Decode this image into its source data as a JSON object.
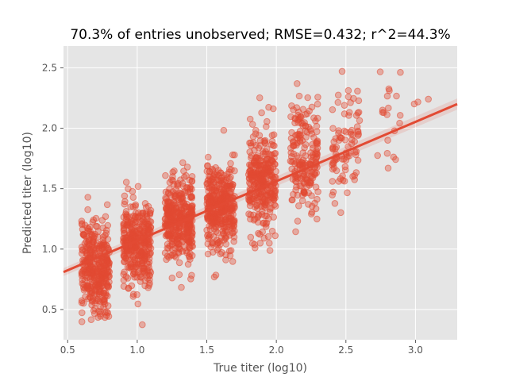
{
  "chart_data": {
    "type": "scatter",
    "title": "70.3% of entries unobserved; RMSE=0.432; r^2=44.3%",
    "xlabel": "True titer (log10)",
    "ylabel": "Predicted titer (log10)",
    "xlim": [
      0.47,
      3.3
    ],
    "ylim": [
      0.25,
      2.68
    ],
    "xticks": [
      0.5,
      1.0,
      1.5,
      2.0,
      2.5,
      3.0
    ],
    "xtick_labels": [
      "0.5",
      "1.0",
      "1.5",
      "2.0",
      "2.5",
      "3.0"
    ],
    "yticks": [
      0.5,
      1.0,
      1.5,
      2.0,
      2.5
    ],
    "ytick_labels": [
      "0.5",
      "1.0",
      "1.5",
      "2.0",
      "2.5"
    ],
    "grid": true,
    "background": "#e5e5e5",
    "point_color": "#e24a33",
    "regression_color": "#e24a33",
    "regression": {
      "x": [
        0.47,
        3.3
      ],
      "y": [
        0.81,
        2.2
      ]
    },
    "clusters": [
      {
        "x_center": 0.7,
        "y_center": 0.85,
        "y_spread": 0.3,
        "count": 360
      },
      {
        "x_center": 1.0,
        "y_center": 1.05,
        "y_spread": 0.28,
        "count": 340
      },
      {
        "x_center": 1.3,
        "y_center": 1.25,
        "y_spread": 0.28,
        "count": 380
      },
      {
        "x_center": 1.6,
        "y_center": 1.35,
        "y_spread": 0.3,
        "count": 380
      },
      {
        "x_center": 1.9,
        "y_center": 1.55,
        "y_spread": 0.35,
        "count": 320
      },
      {
        "x_center": 2.2,
        "y_center": 1.75,
        "y_spread": 0.38,
        "count": 200
      },
      {
        "x_center": 2.5,
        "y_center": 1.8,
        "y_spread": 0.4,
        "count": 90
      },
      {
        "x_center": 2.8,
        "y_center": 2.1,
        "y_spread": 0.3,
        "count": 20
      },
      {
        "x_center": 3.05,
        "y_center": 2.2,
        "y_spread": 0.15,
        "count": 3
      }
    ]
  }
}
